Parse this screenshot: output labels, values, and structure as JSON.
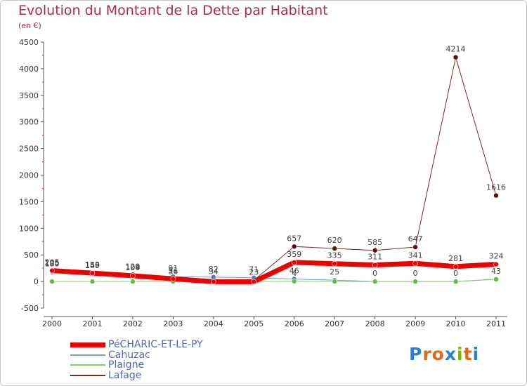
{
  "title": "Evolution du Montant de la Dette par Habitant",
  "subtitle": "(en €)",
  "logo": {
    "text": "Proxiti",
    "letter_colors": [
      "#2a7fd4",
      "#e06a1a",
      "#e06a1a",
      "#2a7fd4",
      "#7ab800",
      "#e06a1a",
      "#2a7fd4"
    ]
  },
  "chart_data": {
    "type": "line",
    "x": [
      "2000",
      "2001",
      "2002",
      "2003",
      "2004",
      "2005",
      "2006",
      "2007",
      "2008",
      "2009",
      "2010",
      "2011"
    ],
    "ylim": [
      -500,
      4500
    ],
    "yticks": [
      -500,
      0,
      500,
      1000,
      1500,
      2000,
      2500,
      3000,
      3500,
      4000,
      4500
    ],
    "grid": false,
    "legend_position": "bottom-left",
    "series": [
      {
        "name": "Lafage",
        "color": "#7a2a2a",
        "marker_color": "#5a1010",
        "line_width": 1,
        "values": [
          180,
          150,
          129,
          36,
          34,
          23,
          657,
          620,
          585,
          647,
          4214,
          1616
        ],
        "labels": [
          "180",
          "150",
          "129",
          "36",
          "34",
          "23",
          "657",
          "620",
          "585",
          "647",
          "4214",
          "1616"
        ]
      },
      {
        "name": "Cahuzac",
        "color": "#7799cc",
        "marker_color": "#5577bb",
        "line_width": 1,
        "values": [
          195,
          149,
          104,
          91,
          82,
          71,
          46,
          25,
          0,
          0,
          0,
          43
        ],
        "labels": [
          "195",
          "149",
          "104",
          "91",
          "82",
          "71",
          "46",
          "25",
          "0",
          "0",
          "0",
          "43"
        ]
      },
      {
        "name": "Plaigne",
        "color": "#88cc66",
        "marker_color": "#66bb44",
        "line_width": 1,
        "values": [
          0,
          0,
          0,
          0,
          0,
          0,
          4,
          0,
          0,
          0,
          0,
          43
        ],
        "labels": [
          "",
          "",
          "",
          "",
          "",
          "",
          "4",
          "",
          "",
          "",
          "",
          ""
        ]
      },
      {
        "name": "PéCHARIC-ET-LE-PY",
        "color": "#ee0000",
        "marker_color": "#ee0000",
        "line_width": 7,
        "values": [
          205,
          158,
          109,
          51,
          -4,
          -3,
          359,
          335,
          311,
          341,
          281,
          324
        ],
        "labels": [
          "205",
          "158",
          "109",
          "51",
          "",
          "",
          "359",
          "335",
          "311",
          "341",
          "281",
          "324"
        ]
      }
    ],
    "legend": [
      {
        "name": "PéCHARIC-ET-LE-PY",
        "color": "#ee0000",
        "thickness": 7
      },
      {
        "name": "Cahuzac",
        "color": "#7799cc",
        "thickness": 2
      },
      {
        "name": "Plaigne",
        "color": "#88cc66",
        "thickness": 2
      },
      {
        "name": "Lafage",
        "color": "#7a2a2a",
        "thickness": 2
      }
    ]
  }
}
